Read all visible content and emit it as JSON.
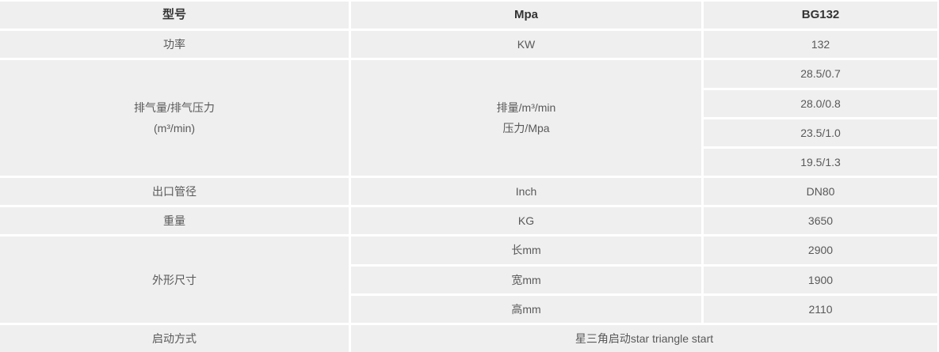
{
  "table": {
    "header": {
      "model_label": "型号",
      "unit_label": "Mpa",
      "model_value": "BG132"
    },
    "power": {
      "label": "功率",
      "unit": "KW",
      "value": "132"
    },
    "discharge": {
      "label_line1": "排气量/排气压力",
      "label_line2": "(m³/min)",
      "unit_line1": "排量/m³/min",
      "unit_line2": "压力/Mpa",
      "values": [
        "28.5/0.7",
        "28.0/0.8",
        "23.5/1.0",
        "19.5/1.3"
      ]
    },
    "outlet": {
      "label": "出口管径",
      "unit": "Inch",
      "value": "DN80"
    },
    "weight": {
      "label": "重量",
      "unit": "KG",
      "value": "3650"
    },
    "dimensions": {
      "label": "外形尺寸",
      "rows": [
        {
          "unit": "长mm",
          "value": "2900"
        },
        {
          "unit": "宽mm",
          "value": "1900"
        },
        {
          "unit": "高mm",
          "value": "2110"
        }
      ]
    },
    "start_mode": {
      "label": "启动方式",
      "value": "星三角启动star triangle start"
    }
  },
  "colors": {
    "cell_background": "#efefef",
    "gap": "#ffffff",
    "body_text": "#595959",
    "header_text": "#333333"
  }
}
